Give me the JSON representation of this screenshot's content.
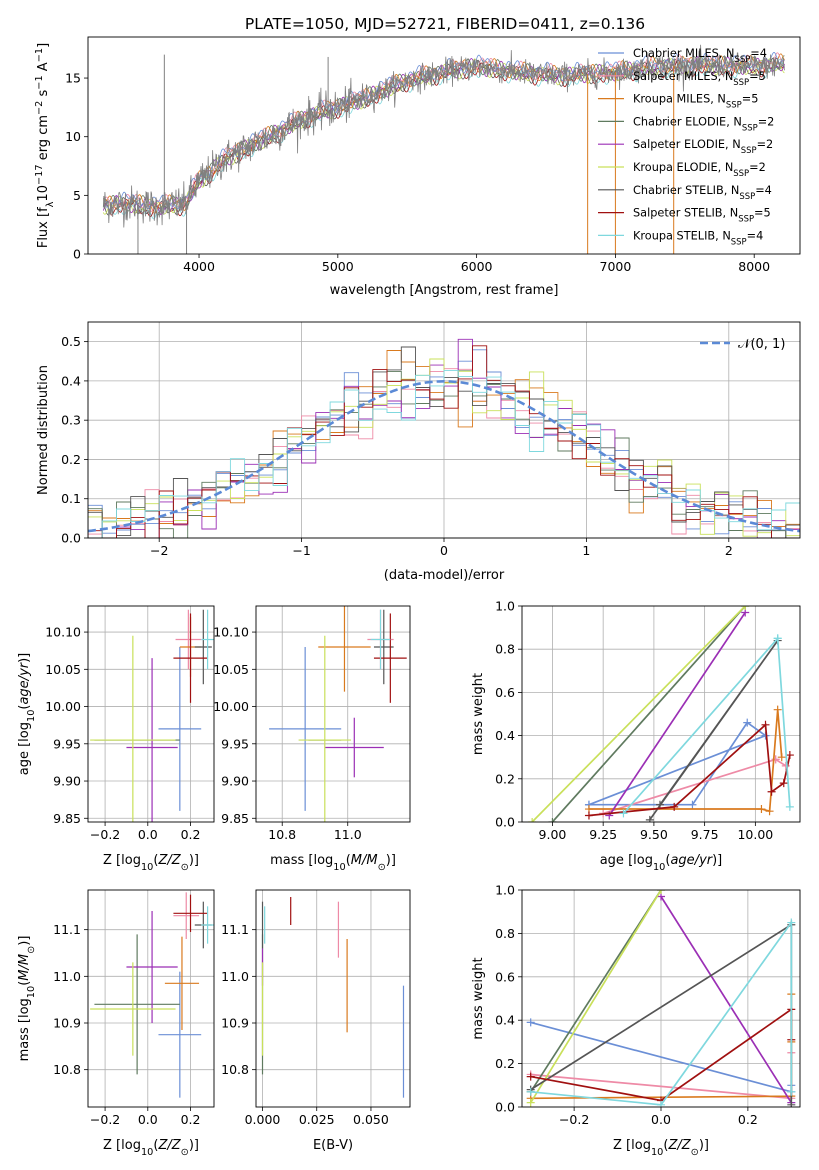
{
  "figure_title": "PLATE=1050, MJD=52721, FIBERID=0411, z=0.136",
  "colors": {
    "chabrier_miles": "#6b8fd6",
    "salpeter_miles": "#ee8aa6",
    "kroupa_miles": "#d97a1e",
    "chabrier_elodie": "#5f7a5f",
    "salpeter_elodie": "#9b2fb5",
    "kroupa_elodie": "#c9e05a",
    "chabrier_stelib": "#555555",
    "salpeter_stelib": "#a01010",
    "kroupa_stelib": "#7fd8de",
    "normal": "#5b8ad6",
    "data": "#808080"
  },
  "chart_data": [
    {
      "id": "spectrum",
      "type": "line",
      "title": "PLATE=1050, MJD=52721, FIBERID=0411, z=0.136",
      "xlabel": "wavelength [Angstrom, rest frame]",
      "ylabel": "Flux [f_λ 10^-17 erg cm^-2 s^-1 A^-1]",
      "xlim": [
        3200,
        8330
      ],
      "ylim": [
        0,
        18.5
      ],
      "xticks": [
        4000,
        5000,
        6000,
        7000,
        8000
      ],
      "yticks": [
        0,
        5,
        10,
        15
      ],
      "grid": false,
      "legend_position": "top-right",
      "legend": [
        {
          "key": "chabrier_miles",
          "label": "Chabrier MILES, N",
          "sub": "SSP",
          "suffix": "=4"
        },
        {
          "key": "salpeter_miles",
          "label": "Salpeter MILES, N",
          "sub": "SSP",
          "suffix": "=5"
        },
        {
          "key": "kroupa_miles",
          "label": "Kroupa MILES, N",
          "sub": "SSP",
          "suffix": "=5"
        },
        {
          "key": "chabrier_elodie",
          "label": "Chabrier ELODIE, N",
          "sub": "SSP",
          "suffix": "=2"
        },
        {
          "key": "salpeter_elodie",
          "label": "Salpeter ELODIE, N",
          "sub": "SSP",
          "suffix": "=2"
        },
        {
          "key": "kroupa_elodie",
          "label": "Kroupa ELODIE, N",
          "sub": "SSP",
          "suffix": "=2"
        },
        {
          "key": "chabrier_stelib",
          "label": "Chabrier STELIB, N",
          "sub": "SSP",
          "suffix": "=4"
        },
        {
          "key": "salpeter_stelib",
          "label": "Salpeter STELIB, N",
          "sub": "SSP",
          "suffix": "=5"
        },
        {
          "key": "kroupa_stelib",
          "label": "Kroupa STELIB, N",
          "sub": "SSP",
          "suffix": "=4"
        }
      ],
      "continuum": [
        [
          3300,
          4.2
        ],
        [
          3500,
          4.3
        ],
        [
          3700,
          4.0
        ],
        [
          3900,
          4.3
        ],
        [
          4000,
          6.2
        ],
        [
          4200,
          8.2
        ],
        [
          4500,
          10.0
        ],
        [
          4800,
          11.8
        ],
        [
          5000,
          12.5
        ],
        [
          5200,
          13.3
        ],
        [
          5500,
          14.8
        ],
        [
          5800,
          15.6
        ],
        [
          6000,
          16.0
        ],
        [
          6300,
          15.5
        ],
        [
          6600,
          15.2
        ],
        [
          7000,
          15.5
        ],
        [
          7300,
          16.0
        ],
        [
          7600,
          16.1
        ],
        [
          8000,
          16.0
        ],
        [
          8200,
          16.2
        ]
      ],
      "spikes": [
        [
          3560,
          0
        ],
        [
          3910,
          0
        ],
        [
          4930,
          16.8
        ],
        [
          6800,
          0
        ],
        [
          7000,
          0
        ],
        [
          7420,
          0
        ]
      ],
      "long_spike": [
        3750,
        17.0
      ]
    },
    {
      "id": "residuals",
      "type": "histogram",
      "xlabel": "(data-model)/error",
      "ylabel": "Normed distribution",
      "xlim": [
        -2.5,
        2.5
      ],
      "ylim": [
        0,
        0.55
      ],
      "xticks": [
        -2,
        -1,
        0,
        1,
        2
      ],
      "yticks": [
        0.0,
        0.1,
        0.2,
        0.3,
        0.4,
        0.5
      ],
      "grid": true,
      "legend_position": "top-right",
      "normal_label": "𝒩(0, 1)",
      "bin_width": 0.1
    },
    {
      "id": "age_vs_Z",
      "type": "scatter",
      "xlabel": "Z [log10(Z/Z⊙)]",
      "ylabel": "age  [log10(age/yr)]",
      "xlim": [
        -0.28,
        0.31
      ],
      "ylim": [
        9.845,
        10.135
      ],
      "xticks": [
        -0.2,
        0.0,
        0.2
      ],
      "yticks": [
        9.85,
        9.9,
        9.95,
        10.0,
        10.05,
        10.1
      ],
      "grid": true,
      "points": [
        {
          "key": "chabrier_miles",
          "x": 0.15,
          "xerr": 0.1,
          "y": 9.97,
          "yerr": 0.11
        },
        {
          "key": "salpeter_miles",
          "x": 0.19,
          "xerr": 0.06,
          "y": 10.09,
          "yerr": 0.04
        },
        {
          "key": "kroupa_miles",
          "x": 0.2,
          "xerr": 0.05,
          "y": 10.08,
          "yerr": 0.04
        },
        {
          "key": "chabrier_elodie",
          "x": -0.05,
          "xerr": 0.2,
          "y": 9.955,
          "yerr": 0.0
        },
        {
          "key": "salpeter_elodie",
          "x": 0.02,
          "xerr": 0.12,
          "y": 9.945,
          "yerr": 0.12
        },
        {
          "key": "kroupa_elodie",
          "x": -0.07,
          "xerr": 0.2,
          "y": 9.955,
          "yerr": 0.14
        },
        {
          "key": "chabrier_stelib",
          "x": 0.26,
          "xerr": 0.04,
          "y": 10.08,
          "yerr": 0.05
        },
        {
          "key": "salpeter_stelib",
          "x": 0.2,
          "xerr": 0.08,
          "y": 10.065,
          "yerr": 0.06
        },
        {
          "key": "kroupa_stelib",
          "x": 0.28,
          "xerr": 0.03,
          "y": 10.09,
          "yerr": 0.04
        }
      ]
    },
    {
      "id": "age_vs_mass",
      "type": "scatter",
      "xlabel": "mass [log10(M/M⊙)]",
      "ylabel": "",
      "xlim": [
        10.72,
        11.19
      ],
      "ylim": [
        9.845,
        10.135
      ],
      "xticks": [
        10.8,
        11.0
      ],
      "yticks": [
        9.85,
        9.9,
        9.95,
        10.0,
        10.05,
        10.1
      ],
      "grid": true,
      "points": [
        {
          "key": "chabrier_miles",
          "x": 10.87,
          "xerr": 0.11,
          "y": 9.97,
          "yerr": 0.11
        },
        {
          "key": "salpeter_miles",
          "x": 11.1,
          "xerr": 0.04,
          "y": 10.09,
          "yerr": 0.04
        },
        {
          "key": "kroupa_miles",
          "x": 10.99,
          "xerr": 0.08,
          "y": 10.08,
          "yerr": 0.06
        },
        {
          "key": "chabrier_elodie",
          "x": 10.93,
          "xerr": 0.05,
          "y": 9.955,
          "yerr": 0.0
        },
        {
          "key": "salpeter_elodie",
          "x": 11.02,
          "xerr": 0.09,
          "y": 9.945,
          "yerr": 0.04
        },
        {
          "key": "kroupa_elodie",
          "x": 10.93,
          "xerr": 0.08,
          "y": 9.955,
          "yerr": 0.14
        },
        {
          "key": "chabrier_stelib",
          "x": 11.11,
          "xerr": 0.03,
          "y": 10.08,
          "yerr": 0.05
        },
        {
          "key": "salpeter_stelib",
          "x": 11.13,
          "xerr": 0.05,
          "y": 10.065,
          "yerr": 0.06
        },
        {
          "key": "kroupa_stelib",
          "x": 11.1,
          "xerr": 0.03,
          "y": 10.09,
          "yerr": 0.04
        }
      ]
    },
    {
      "id": "mass_weight_vs_age",
      "type": "line",
      "xlabel": "age  [log10(age/yr)]",
      "ylabel": "mass weight",
      "xlim": [
        8.85,
        10.22
      ],
      "ylim": [
        0,
        1
      ],
      "xticks": [
        9.0,
        9.25,
        9.5,
        9.75,
        10.0
      ],
      "yticks": [
        0.0,
        0.2,
        0.4,
        0.6,
        0.8,
        1.0
      ],
      "grid": true,
      "series": [
        {
          "key": "chabrier_miles",
          "x": [
            9.18,
            9.69,
            9.96,
            10.05,
            9.18
          ],
          "y": [
            0.08,
            0.08,
            0.46,
            0.4,
            0.08
          ]
        },
        {
          "key": "salpeter_miles",
          "x": [
            9.25,
            10.1,
            10.15,
            10.1
          ],
          "y": [
            0.04,
            0.29,
            0.26,
            0.29
          ]
        },
        {
          "key": "kroupa_miles",
          "x": [
            9.18,
            10.03,
            10.07,
            10.11,
            10.13
          ],
          "y": [
            0.06,
            0.06,
            0.05,
            0.52,
            0.3
          ]
        },
        {
          "key": "chabrier_elodie",
          "x": [
            9.0,
            9.95
          ],
          "y": [
            0.0,
            1.0
          ]
        },
        {
          "key": "salpeter_elodie",
          "x": [
            9.28,
            9.95
          ],
          "y": [
            0.03,
            0.97
          ]
        },
        {
          "key": "kroupa_elodie",
          "x": [
            8.9,
            9.95
          ],
          "y": [
            0.0,
            1.0
          ]
        },
        {
          "key": "chabrier_stelib",
          "x": [
            9.48,
            10.11,
            9.53
          ],
          "y": [
            0.01,
            0.84,
            0.08
          ]
        },
        {
          "key": "salpeter_stelib",
          "x": [
            9.18,
            9.6,
            10.05,
            10.08,
            10.14,
            10.17
          ],
          "y": [
            0.03,
            0.07,
            0.45,
            0.14,
            0.18,
            0.31
          ]
        },
        {
          "key": "kroupa_stelib",
          "x": [
            9.35,
            10.11,
            10.17,
            10.11
          ],
          "y": [
            0.04,
            0.85,
            0.07,
            0.85
          ]
        }
      ]
    },
    {
      "id": "mass_vs_Z",
      "type": "scatter",
      "xlabel": "Z [log10(Z/Z⊙)]",
      "ylabel": "mass [log10(M/M⊙)]",
      "xlim": [
        -0.28,
        0.31
      ],
      "ylim": [
        10.72,
        11.185
      ],
      "xticks": [
        -0.2,
        0.0,
        0.2
      ],
      "yticks": [
        10.8,
        10.9,
        11.0,
        11.1
      ],
      "grid": true,
      "points": [
        {
          "key": "chabrier_miles",
          "x": 0.15,
          "xerr": 0.1,
          "y": 10.875,
          "yerr": 0.135
        },
        {
          "key": "salpeter_miles",
          "x": 0.18,
          "xerr": 0.06,
          "y": 11.13,
          "yerr": 0.05
        },
        {
          "key": "kroupa_miles",
          "x": 0.16,
          "xerr": 0.08,
          "y": 10.985,
          "yerr": 0.1
        },
        {
          "key": "chabrier_elodie",
          "x": -0.05,
          "xerr": 0.2,
          "y": 10.94,
          "yerr": 0.15
        },
        {
          "key": "salpeter_elodie",
          "x": 0.02,
          "xerr": 0.12,
          "y": 11.02,
          "yerr": 0.12
        },
        {
          "key": "kroupa_elodie",
          "x": -0.07,
          "xerr": 0.2,
          "y": 10.93,
          "yerr": 0.1
        },
        {
          "key": "chabrier_stelib",
          "x": 0.26,
          "xerr": 0.04,
          "y": 11.11,
          "yerr": 0.05
        },
        {
          "key": "salpeter_stelib",
          "x": 0.2,
          "xerr": 0.08,
          "y": 11.135,
          "yerr": 0.04
        },
        {
          "key": "kroupa_stelib",
          "x": 0.28,
          "xerr": 0.03,
          "y": 11.11,
          "yerr": 0.04
        }
      ]
    },
    {
      "id": "mass_vs_ebv",
      "type": "scatter",
      "xlabel": "E(B-V)",
      "ylabel": "",
      "xlim": [
        -0.003,
        0.068
      ],
      "ylim": [
        10.72,
        11.185
      ],
      "xticks": [
        0.0,
        0.025,
        0.05
      ],
      "xticklabels": [
        "0.000",
        "0.025",
        "0.050"
      ],
      "yticks": [
        10.8,
        10.9,
        11.0,
        11.1
      ],
      "grid": true,
      "points": [
        {
          "key": "chabrier_miles",
          "x": 0.065,
          "xerr": 0,
          "y": 10.86,
          "yerr": 0.12
        },
        {
          "key": "salpeter_miles",
          "x": 0.035,
          "xerr": 0,
          "y": 11.1,
          "yerr": 0.06
        },
        {
          "key": "kroupa_miles",
          "x": 0.039,
          "xerr": 0,
          "y": 10.98,
          "yerr": 0.1
        },
        {
          "key": "chabrier_elodie",
          "x": 0.0,
          "xerr": 0,
          "y": 10.94,
          "yerr": 0.15
        },
        {
          "key": "salpeter_elodie",
          "x": 0.0,
          "xerr": 0,
          "y": 11.02,
          "yerr": 0.04
        },
        {
          "key": "kroupa_elodie",
          "x": 0.0,
          "xerr": 0,
          "y": 10.93,
          "yerr": 0.1
        },
        {
          "key": "chabrier_stelib",
          "x": 0.0,
          "xerr": 0,
          "y": 11.11,
          "yerr": 0.05
        },
        {
          "key": "salpeter_stelib",
          "x": 0.013,
          "xerr": 0,
          "y": 11.14,
          "yerr": 0.03
        },
        {
          "key": "kroupa_stelib",
          "x": 0.001,
          "xerr": 0,
          "y": 11.11,
          "yerr": 0.04
        }
      ]
    },
    {
      "id": "mass_weight_vs_Z",
      "type": "line",
      "xlabel": "Z [log10(Z/Z⊙)]",
      "ylabel": "mass weight",
      "xlim": [
        -0.32,
        0.32
      ],
      "ylim": [
        0,
        1
      ],
      "xticks": [
        -0.2,
        0.0,
        0.2
      ],
      "yticks": [
        0.0,
        0.2,
        0.4,
        0.6,
        0.8,
        1.0
      ],
      "grid": true,
      "series": [
        {
          "key": "chabrier_miles",
          "x": [
            -0.3,
            0.3,
            0.3
          ],
          "y": [
            0.39,
            0.07,
            0.1
          ]
        },
        {
          "key": "salpeter_miles",
          "x": [
            -0.3,
            0.3,
            0.3
          ],
          "y": [
            0.15,
            0.04,
            0.25
          ]
        },
        {
          "key": "kroupa_miles",
          "x": [
            -0.3,
            0.3,
            0.3,
            0.3
          ],
          "y": [
            0.04,
            0.05,
            0.52,
            0.3
          ]
        },
        {
          "key": "chabrier_elodie",
          "x": [
            -0.3,
            0.0
          ],
          "y": [
            0.07,
            1.0
          ]
        },
        {
          "key": "salpeter_elodie",
          "x": [
            0.0,
            0.3
          ],
          "y": [
            0.97,
            0.02
          ]
        },
        {
          "key": "kroupa_elodie",
          "x": [
            -0.3,
            0.0
          ],
          "y": [
            0.02,
            1.0
          ]
        },
        {
          "key": "chabrier_stelib",
          "x": [
            -0.3,
            0.3,
            0.3
          ],
          "y": [
            0.08,
            0.84,
            0.01
          ]
        },
        {
          "key": "salpeter_stelib",
          "x": [
            -0.3,
            0.0,
            0.3,
            0.3
          ],
          "y": [
            0.14,
            0.03,
            0.45,
            0.31
          ]
        },
        {
          "key": "kroupa_stelib",
          "x": [
            -0.3,
            0.0,
            0.3,
            0.3
          ],
          "y": [
            0.07,
            0.01,
            0.85,
            0.07
          ]
        }
      ]
    }
  ]
}
